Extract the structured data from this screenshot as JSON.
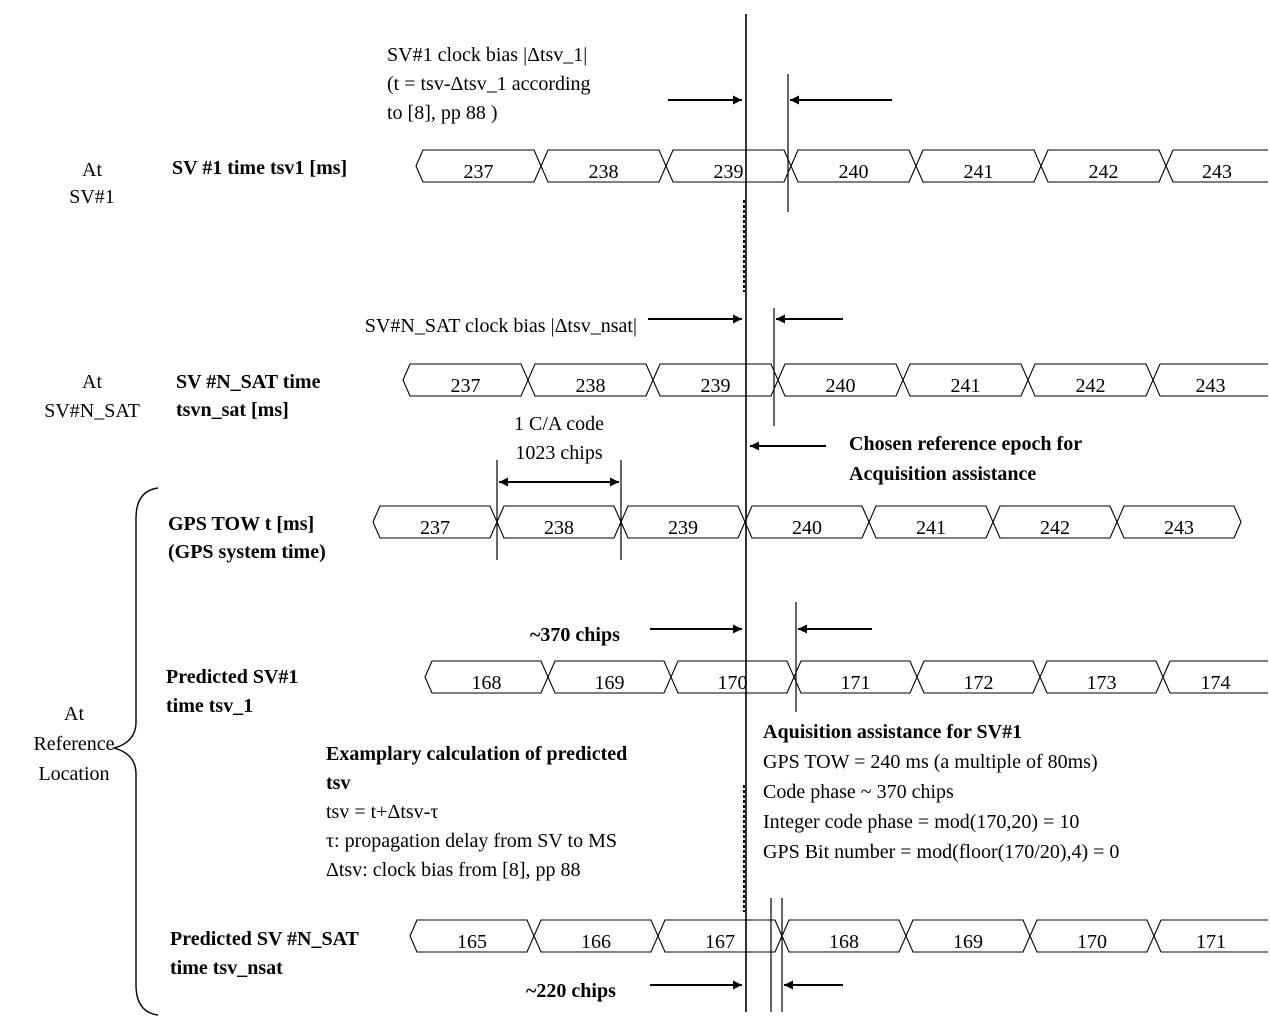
{
  "rows": [
    {
      "id": "sv1",
      "side_label": [
        "At",
        "SV#1"
      ],
      "title": [
        "SV #1 time tsv1 [ms]"
      ],
      "cells": [
        "237",
        "238",
        "239",
        "240",
        "241",
        "242",
        "243"
      ]
    },
    {
      "id": "svn",
      "side_label": [
        "At",
        "SV#N_SAT"
      ],
      "title": [
        "SV #N_SAT  time",
        "tsvn_sat  [ms]"
      ],
      "cells": [
        "237",
        "238",
        "239",
        "240",
        "241",
        "242",
        "243"
      ]
    },
    {
      "id": "tow",
      "title": [
        "GPS TOW t [ms]",
        "(GPS system time)"
      ],
      "cells": [
        "237",
        "238",
        "239",
        "240",
        "241",
        "242",
        "243"
      ]
    },
    {
      "id": "pred1",
      "title": [
        "Predicted SV#1",
        "time tsv_1"
      ],
      "cells": [
        "168",
        "169",
        "170",
        "171",
        "172",
        "173",
        "174"
      ]
    },
    {
      "id": "predn",
      "title": [
        "Predicted SV #N_SAT",
        "time tsv_nsat"
      ],
      "cells": [
        "165",
        "166",
        "167",
        "168",
        "169",
        "170",
        "171"
      ]
    }
  ],
  "reference_label": [
    "At",
    "Reference",
    "Location"
  ],
  "annotations": {
    "sv1_bias": [
      "SV#1 clock bias |Δtsv_1|",
      "(t = tsv-Δtsv_1 according",
      "to [8], pp 88 )"
    ],
    "svn_bias": "SV#N_SAT clock bias |Δtsv_nsat|",
    "ca_code": [
      "1 C/A code",
      "1023 chips"
    ],
    "ref_epoch": [
      "Chosen reference epoch for",
      "Acquisition assistance"
    ],
    "chips_370": "~370 chips",
    "chips_220": "~220 chips",
    "example": {
      "title": [
        "Examplary calculation of predicted",
        "tsv"
      ],
      "lines": [
        "tsv = t+Δtsv-τ",
        "τ: propagation delay from SV to MS",
        "Δtsv: clock bias from [8], pp 88"
      ]
    },
    "assist": {
      "title": "Aquisition assistance for SV#1",
      "lines": [
        "GPS TOW = 240 ms (a multiple of 80ms)",
        "Code phase  ~ 370 chips",
        "Integer code phase = mod(170,20) = 10",
        "GPS Bit number = mod(floor(170/20),4) = 0"
      ]
    }
  }
}
